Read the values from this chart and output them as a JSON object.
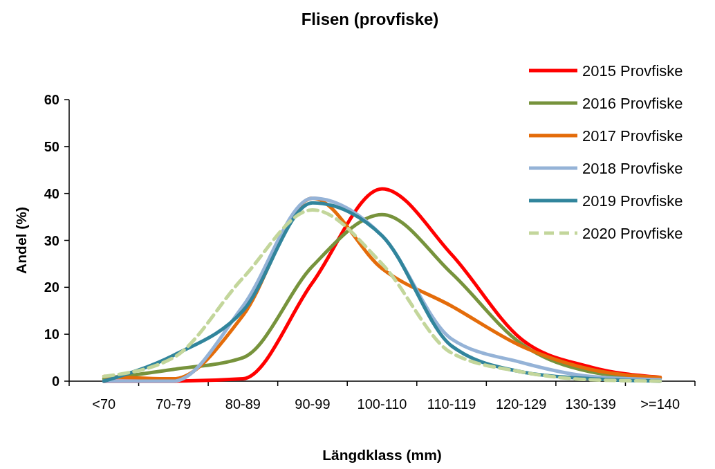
{
  "chart_data": {
    "type": "line",
    "title": "Flisen (provfiske)",
    "xlabel": "Längdklass (mm)",
    "ylabel": "Andel (%)",
    "categories": [
      "<70",
      "70-79",
      "80-89",
      "90-99",
      "100-110",
      "110-119",
      "120-129",
      "130-139",
      ">=140"
    ],
    "ylim": [
      0,
      60
    ],
    "yticks": [
      0,
      10,
      20,
      30,
      40,
      50,
      60
    ],
    "legend": "top right",
    "grid": false,
    "series": [
      {
        "name": "2015 Provfiske",
        "color": "#ff0000",
        "values": [
          0,
          0,
          0.5,
          21,
          41,
          27,
          9,
          3,
          0.8
        ]
      },
      {
        "name": "2016 Provfiske",
        "color": "#77933c",
        "values": [
          0.5,
          2.5,
          5,
          24.5,
          35.5,
          23,
          8,
          2,
          0.5
        ]
      },
      {
        "name": "2017 Provfiske",
        "color": "#e46c0a",
        "values": [
          1,
          0.5,
          14,
          39,
          24,
          16,
          7.5,
          2.5,
          0.8
        ]
      },
      {
        "name": "2018 Provfiske",
        "color": "#95b3d7",
        "values": [
          0,
          0,
          16,
          39,
          31,
          9,
          4,
          1,
          0.3
        ]
      },
      {
        "name": "2019 Provfiske",
        "color": "#31859c",
        "values": [
          0,
          5.5,
          15,
          38,
          31,
          7.5,
          2,
          0.5,
          0
        ]
      },
      {
        "name": "2020 Provfiske",
        "color": "#c3d69b",
        "line_style": "dashed",
        "values": [
          1,
          5,
          22,
          36.5,
          25,
          6,
          2,
          0.3,
          0
        ]
      }
    ]
  }
}
